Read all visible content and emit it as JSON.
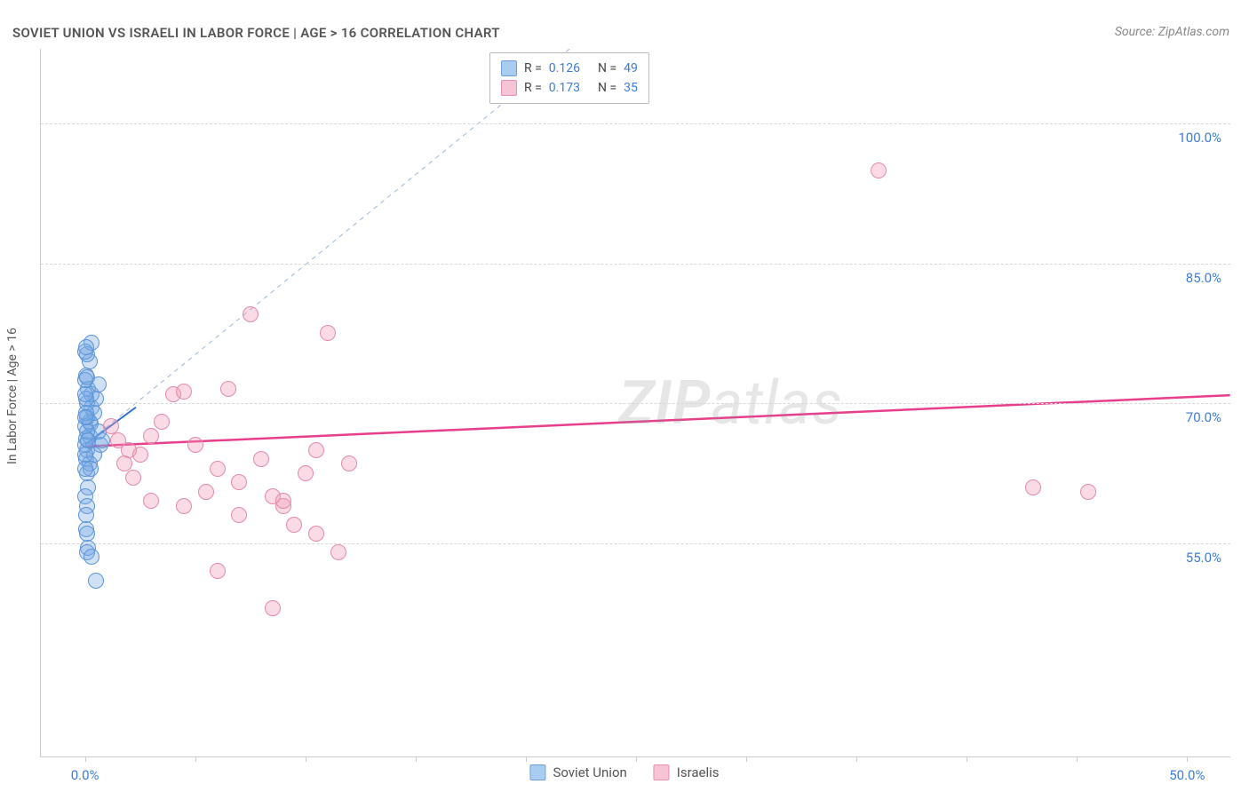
{
  "title": "SOVIET UNION VS ISRAELI IN LABOR FORCE | AGE > 16 CORRELATION CHART",
  "source_label": "Source: ZipAtlas.com",
  "watermark": {
    "bold": "ZIP",
    "rest": "atlas"
  },
  "y_axis_label": "In Labor Force | Age > 16",
  "chart": {
    "type": "scatter",
    "background_color": "#ffffff",
    "grid_color": "#d8d8d8",
    "axis_color": "#cccccc",
    "xlim": [
      -2,
      52
    ],
    "ylim": [
      32,
      108
    ],
    "x_ticks": [
      0,
      5,
      10,
      15,
      20,
      25,
      30,
      35,
      40,
      45,
      50
    ],
    "x_tick_labels": {
      "0": "0.0%",
      "50": "50.0%"
    },
    "y_ticks": [
      55,
      70,
      85,
      100
    ],
    "y_tick_labels": {
      "55": "55.0%",
      "70": "70.0%",
      "85": "85.0%",
      "100": "100.0%"
    },
    "marker_radius": 9,
    "marker_border_width": 1.2,
    "series": [
      {
        "name": "Soviet Union",
        "fill": "rgba(120,170,230,0.35)",
        "stroke": "#5b94d6",
        "swatch_fill": "#a8cdf0",
        "swatch_stroke": "#6aa0dd",
        "r": "0.126",
        "n": "49",
        "trend": {
          "x1": 0,
          "y1": 65.5,
          "x2": 2.3,
          "y2": 69.5,
          "color": "#2e6fd0",
          "width": 2,
          "dash": "none"
        },
        "guide": {
          "x1": 0,
          "y1": 65.5,
          "x2": 22,
          "y2": 108,
          "color": "#9bb7da",
          "width": 1,
          "dash": "5,5"
        },
        "points": [
          [
            0.0,
            67.5
          ],
          [
            0.1,
            65.0
          ],
          [
            0.05,
            66.2
          ],
          [
            0.2,
            68.0
          ],
          [
            0.3,
            69.5
          ],
          [
            0.1,
            70.0
          ],
          [
            0.15,
            71.5
          ],
          [
            0.05,
            73.0
          ],
          [
            0.2,
            74.5
          ],
          [
            0.1,
            75.2
          ],
          [
            0.3,
            76.5
          ],
          [
            0.05,
            64.0
          ],
          [
            0.1,
            62.5
          ],
          [
            0.15,
            61.0
          ],
          [
            0.0,
            60.0
          ],
          [
            0.2,
            66.5
          ],
          [
            0.25,
            67.8
          ],
          [
            0.1,
            68.5
          ],
          [
            0.4,
            69.0
          ],
          [
            0.5,
            70.5
          ],
          [
            0.3,
            71.0
          ],
          [
            0.6,
            72.0
          ],
          [
            0.2,
            63.5
          ],
          [
            0.1,
            59.0
          ],
          [
            0.05,
            58.0
          ],
          [
            0.15,
            54.5
          ],
          [
            0.1,
            54.0
          ],
          [
            0.3,
            53.5
          ],
          [
            0.5,
            51.0
          ],
          [
            0.05,
            56.5
          ],
          [
            0.1,
            56.0
          ],
          [
            0.7,
            65.5
          ],
          [
            0.8,
            66.0
          ],
          [
            0.4,
            64.5
          ],
          [
            0.6,
            67.0
          ],
          [
            0.25,
            63.0
          ],
          [
            0.0,
            65.5
          ],
          [
            0.05,
            69.0
          ],
          [
            0.1,
            67.0
          ],
          [
            0.0,
            68.5
          ],
          [
            0.15,
            66.0
          ],
          [
            0.0,
            72.5
          ],
          [
            0.05,
            70.5
          ],
          [
            0.0,
            71.0
          ],
          [
            0.1,
            72.8
          ],
          [
            0.0,
            75.5
          ],
          [
            0.05,
            76.0
          ],
          [
            0.0,
            64.5
          ],
          [
            0.0,
            63.0
          ]
        ]
      },
      {
        "name": "Israelis",
        "fill": "rgba(240,150,180,0.35)",
        "stroke": "#e38aac",
        "swatch_fill": "#f6c4d5",
        "swatch_stroke": "#e690b0",
        "r": "0.173",
        "n": "35",
        "trend": {
          "x1": 0,
          "y1": 65.3,
          "x2": 52,
          "y2": 70.8,
          "color": "#e83e8c",
          "width": 2.5,
          "dash": "none"
        },
        "points": [
          [
            1.5,
            66.0
          ],
          [
            2.0,
            65.0
          ],
          [
            2.5,
            64.5
          ],
          [
            3.0,
            66.5
          ],
          [
            3.5,
            68.0
          ],
          [
            4.0,
            71.0
          ],
          [
            4.5,
            71.2
          ],
          [
            5.0,
            65.5
          ],
          [
            5.5,
            60.5
          ],
          [
            6.0,
            63.0
          ],
          [
            6.5,
            71.5
          ],
          [
            7.0,
            58.0
          ],
          [
            7.5,
            79.5
          ],
          [
            8.0,
            64.0
          ],
          [
            8.5,
            60.0
          ],
          [
            9.0,
            59.0
          ],
          [
            9.5,
            57.0
          ],
          [
            10.0,
            62.5
          ],
          [
            10.5,
            65.0
          ],
          [
            11.0,
            77.5
          ],
          [
            11.5,
            54.0
          ],
          [
            12.0,
            63.5
          ],
          [
            6.0,
            52.0
          ],
          [
            7.0,
            61.5
          ],
          [
            8.5,
            48.0
          ],
          [
            9.0,
            59.5
          ],
          [
            10.5,
            56.0
          ],
          [
            4.5,
            59.0
          ],
          [
            3.0,
            59.5
          ],
          [
            2.2,
            62.0
          ],
          [
            1.8,
            63.5
          ],
          [
            1.2,
            67.5
          ],
          [
            36.0,
            95.0
          ],
          [
            43.0,
            61.0
          ],
          [
            45.5,
            60.5
          ]
        ]
      }
    ]
  },
  "legend_top": {
    "r_label": "R =",
    "n_label": "N ="
  },
  "legend_bottom": [
    "Soviet Union",
    "Israelis"
  ]
}
